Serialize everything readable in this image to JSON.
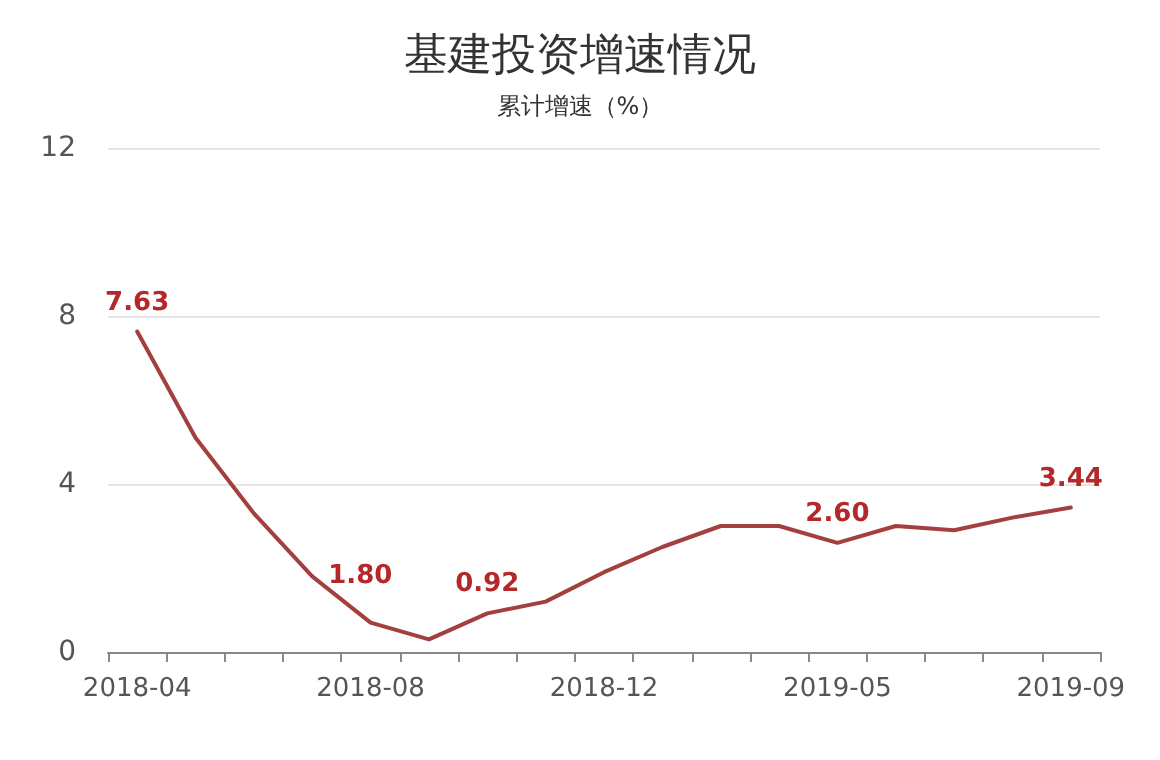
{
  "chart_data": {
    "type": "line",
    "title": "基建投资增速情况",
    "subtitle": "累计增速（%）",
    "categories": [
      "2018-04",
      null,
      null,
      null,
      "2018-08",
      null,
      null,
      null,
      "2018-12",
      null,
      null,
      null,
      "2019-05",
      null,
      null,
      null,
      "2019-09"
    ],
    "series": [
      {
        "color": "#a3403e",
        "values": [
          7.63,
          5.1,
          3.3,
          1.8,
          0.7,
          0.3,
          0.92,
          1.2,
          1.9,
          2.5,
          3.0,
          3.0,
          2.6,
          3.0,
          2.9,
          3.2,
          3.44
        ],
        "value_labels": [
          "7.63",
          null,
          null,
          "1.80",
          null,
          null,
          "0.92",
          null,
          null,
          null,
          null,
          null,
          "2.60",
          null,
          null,
          null,
          "3.44"
        ]
      }
    ],
    "ylim": [
      0,
      12
    ],
    "yticks": [
      0,
      4,
      8,
      12
    ],
    "grid": "y",
    "marker": "none",
    "line_style": "solid"
  }
}
